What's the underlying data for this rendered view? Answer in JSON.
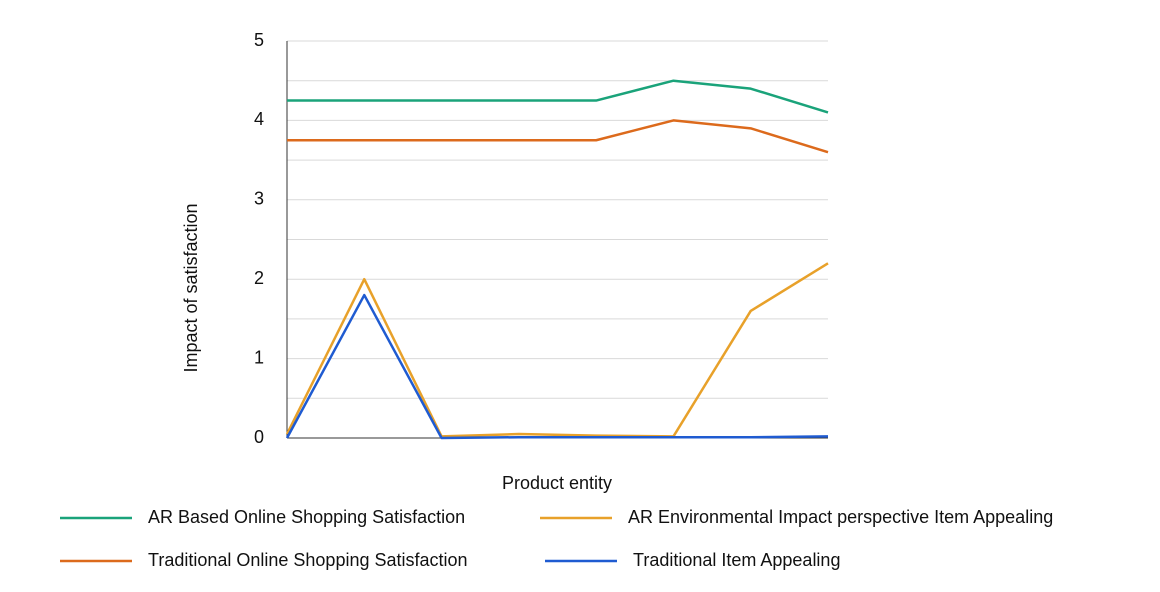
{
  "chart_data": {
    "type": "line",
    "y_label": "Impact of satisfaction",
    "x_label": "Product entity",
    "categories": [
      null,
      null,
      null,
      null,
      null,
      null,
      null,
      null
    ],
    "series": [
      {
        "name": "AR Based Online Shopping Satisfaction",
        "color": "#1aa37a",
        "values": [
          4.25,
          4.25,
          4.25,
          4.25,
          4.25,
          4.5,
          4.4,
          4.1
        ]
      },
      {
        "name": "AR Environmental Impact perspective Item Appealing",
        "color": "#e8a12a",
        "values": [
          0.05,
          2.0,
          0.02,
          0.05,
          0.03,
          0.02,
          1.6,
          2.2
        ]
      },
      {
        "name": "Traditional Online Shopping Satisfaction",
        "color": "#dc6a1c",
        "values": [
          3.75,
          3.75,
          3.75,
          3.75,
          3.75,
          4.0,
          3.9,
          3.6
        ]
      },
      {
        "name": "Traditional Item Appealing",
        "color": "#1f5bd1",
        "values": [
          0,
          1.8,
          0,
          0.01,
          0.01,
          0.01,
          0.01,
          0.02
        ]
      }
    ],
    "ylim": [
      0,
      5
    ],
    "yticks": [
      0,
      1,
      2,
      3,
      4,
      5
    ],
    "grid": true
  }
}
